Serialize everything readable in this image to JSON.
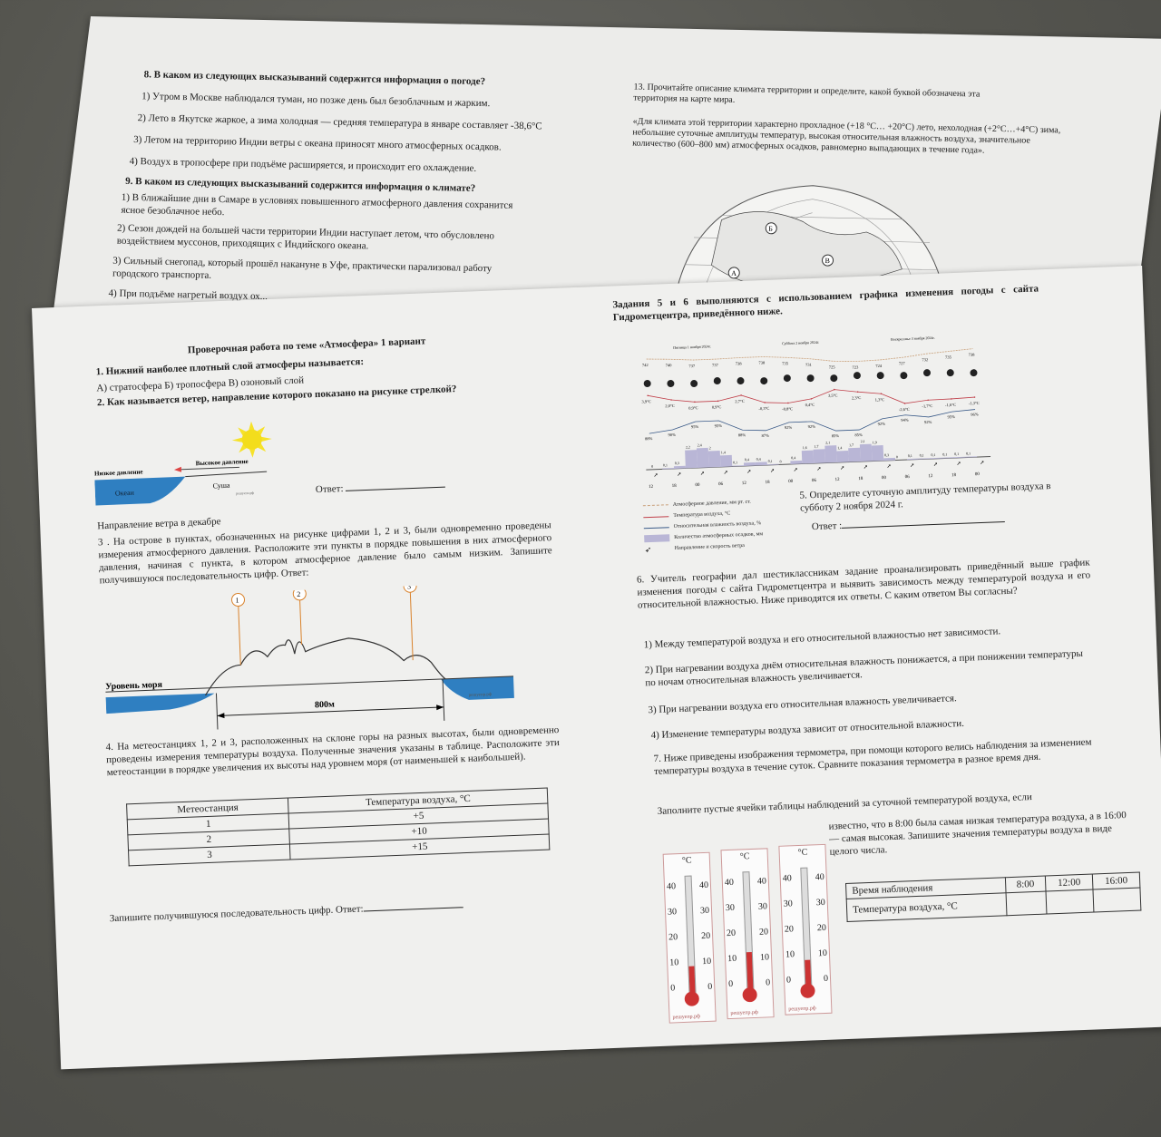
{
  "top_sheet": {
    "q8": {
      "question": "8. В каком из следующих высказываний содержится информация о погоде?",
      "options": [
        "1) Утром в Москве наблюдался туман, но позже день был безоблачным и жарким.",
        "2) Лето в Якутске жаркое, а зима холодная — средняя температура в январе составляет -38,6°С",
        "3) Летом на территорию Индии ветры с океана приносят много атмосферных осадков.",
        "4) Воздух в тропосфере при подъёме расширяется, и происходит его охлаждение."
      ]
    },
    "q9": {
      "question": "9. В каком из следующих высказываний содержится информация о климате?",
      "options": [
        "1) В ближайшие дни в Самаре в условиях повышенного атмосферного давления сохранится ясное безоблачное небо.",
        "2) Сезон дождей на большей части территории Индии наступает летом, что обусловлено воздействием муссонов, приходящих с Индийского океана.",
        "3) Сильный снегопад, который прошёл накануне в Уфе, практически парализовал работу городского транспорта.",
        "4) При подъёме нагретый воздух ох..."
      ]
    },
    "q13": {
      "question": "13. Прочитайте описание климата территории и определите, какой буквой обозначена эта территория на карте мира.",
      "quote": "«Для климата этой территории характерно прохладное (+18 °С… +20°С) лето, нехолодная (+2°С…+4°С) зима, небольшие суточные амплитуды температур, высокая относительная влажность воздуха, значительное количество (600–800 мм) атмосферных осадков, равномерно выпадающих в течение года».",
      "map_letters": [
        "А",
        "Б",
        "В"
      ]
    }
  },
  "main_sheet": {
    "title": "Проверочная работа по теме «Атмосфера» 1 вариант",
    "q1": {
      "question": "1. Нижний наиболее плотный слой атмосферы называется:",
      "options": "А) стратосфера Б) тропосфера В) озоновый слой"
    },
    "q2": {
      "question": "2. Как называется ветер, направление которого показано на рисунке стрелкой?",
      "low_pressure": "Низкое давление",
      "high_pressure": "Высокое давление",
      "ocean": "Океан",
      "land": "Суша",
      "watermark": "решуепэ.рф",
      "answer_label": "Ответ:",
      "caption": "Направление ветра в декабре"
    },
    "q3": {
      "text": "3 . На острове в пунктах, обозначенных на рисунке цифрами 1, 2 и 3, были одновременно проведены измерения атмосферного давления. Расположите эти пункты в порядке повышения в них атмосферного давления, начиная с пункта, в котором атмосферное давление было самым низким. Запишите получившуюся последовательность цифр. Ответ:",
      "points": [
        "1",
        "2",
        "3"
      ],
      "sea_level": "Уровень моря",
      "distance": "800м",
      "watermark": "решуепр.рф"
    },
    "q4": {
      "text": "4. На метеостанциях 1, 2 и 3, расположенных на склоне горы на разных высотах, были одновременно проведены измерения температуры воздуха. Полученные значения указаны в таблице. Расположите эти метеостанции в порядке увеличения их высоты над уровнем моря (от наименьшей к наибольшей).",
      "headers": [
        "Метеостанция",
        "Температура воздуха, °С"
      ],
      "rows": [
        [
          "1",
          "+5"
        ],
        [
          "2",
          "+10"
        ],
        [
          "3",
          "+15"
        ]
      ],
      "answer": "Запишите получившуюся последовательность цифр. Ответ:"
    },
    "tasks56_intro": "Задания 5 и 6 выполняются с использованием графика изменения погоды с сайта Гидрометцентра, приведённого ниже.",
    "weather_chart": {
      "days": [
        "Пятница 1 ноября 2024г.",
        "Суббота 2 ноября 2024г.",
        "Воскресенье 3 ноября 2024г."
      ],
      "pressure": [
        "742",
        "740",
        "737",
        "737",
        "738",
        "738",
        "735",
        "731",
        "725",
        "723",
        "724",
        "727",
        "732",
        "735",
        "738"
      ],
      "temperature": [
        "3,9°C",
        "2,0°C",
        "0,9°C",
        "0,9°C",
        "2,7°C",
        "-0,3°C",
        "-0,8°C",
        "0,4°C",
        "3,5°C",
        "2,3°C",
        "1,3°C",
        "-2,6°C",
        "-1,7°C",
        "-1,6°C",
        "-1,3°C"
      ],
      "humidity": [
        "88%",
        "90%",
        "95%",
        "95%",
        "88%",
        "87%",
        "92%",
        "92%",
        "85%",
        "85%",
        "92%",
        "94%",
        "92%",
        "95%",
        "96%"
      ],
      "precipitation": [
        "0",
        "0,1",
        "0,3",
        "2,2",
        "2,4",
        "2",
        "1,4",
        "0,1",
        "0,4",
        "0,4",
        "0,1",
        "0",
        "0,4",
        "1,6",
        "1,7",
        "2,1",
        "1,4",
        "1,7",
        "2,1",
        "1,9",
        "0,3",
        "0",
        "0,1",
        "0,1",
        "0,1",
        "0,1",
        "0,1",
        "0,1"
      ],
      "hours": [
        "12",
        "18",
        "00",
        "06",
        "12",
        "18",
        "00",
        "06",
        "12",
        "18",
        "00",
        "06",
        "12",
        "18",
        "00"
      ],
      "legend": [
        "Атмосферное давление, мм рт. ст.",
        "Температура воздуха, °С",
        "Относительная влажность воздуха, %",
        "Количество атмосферных осадков, мм",
        "Направление и скорость ветра"
      ],
      "colors": {
        "pressure": "#c9a07a",
        "temperature": "#c0404a",
        "humidity": "#3a5a88",
        "precipitation": "#b9b6d6"
      }
    },
    "q5": {
      "question": "5. Определите суточную амплитуду температуры воздуха в субботу 2 ноября 2024 г.",
      "answer_label": "Ответ :"
    },
    "q6": {
      "question": "6. Учитель географии дал шестиклассникам задание проанализировать приведённый выше график изменения погоды с сайта Гидрометцентра и выявить зависимость между температурой воздуха и его относительной влажностью. Ниже приводятся их ответы. С каким ответом Вы согласны?",
      "options": [
        "1) Между температурой воздуха и его относительной влажностью нет зависимости.",
        "2) При нагревании воздуха днём относительная влажность понижается, а при понижении температуры по ночам относительная влажность увеличивается.",
        "3) При нагревании воздуха его относительная влажность увеличивается.",
        "4) Изменение температуры воздуха зависит от относительной влажности."
      ]
    },
    "q7": {
      "question": "7. Ниже приведены изображения термометра, при помощи которого велись наблюдения за изменением температуры воздуха в течение суток. Сравните показания термометра в разное время дня.",
      "instruction": "Заполните пустые ячейки таблицы наблюдений за суточной температурой воздуха, если",
      "condition": "известно, что в 8:00 была самая низкая температура воздуха, а в 16:00 — самая высокая. Запишите значения температуры воздуха в виде целого числа.",
      "thermometer_unit": "°С",
      "thermometer_scale": [
        "40",
        "30",
        "20",
        "10",
        "0"
      ],
      "thermometer_readings_c": [
        8,
        12,
        7
      ],
      "watermark": "решуепр.рф",
      "table_headers": [
        "Время наблюдения",
        "8:00",
        "12:00",
        "16:00"
      ],
      "table_row_label": "Температура воздуха, °С"
    }
  }
}
